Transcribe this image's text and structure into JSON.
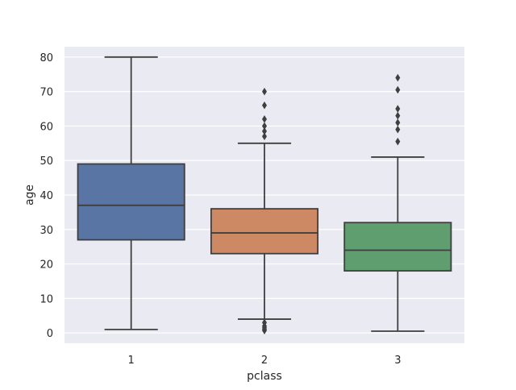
{
  "chart_data": {
    "type": "boxplot",
    "title": "",
    "xlabel": "pclass",
    "ylabel": "age",
    "categories": [
      "1",
      "2",
      "3"
    ],
    "ylim": [
      -3,
      83
    ],
    "yticks": [
      0,
      10,
      20,
      30,
      40,
      50,
      60,
      70,
      80
    ],
    "grid": true,
    "background": "#EAEAF2",
    "grid_color": "#FFFFFF",
    "line_color": "#3F3F3F",
    "boxes": [
      {
        "category": "1",
        "color": "#5975A4",
        "whisker_low": 1,
        "q1": 27,
        "median": 37,
        "q3": 49,
        "whisker_high": 80,
        "outliers": []
      },
      {
        "category": "2",
        "color": "#CC8963",
        "whisker_low": 4,
        "q1": 23,
        "median": 29,
        "q3": 36,
        "whisker_high": 55,
        "outliers": [
          0.7,
          1,
          1.5,
          2,
          3,
          57,
          58.5,
          60,
          62,
          66,
          70
        ]
      },
      {
        "category": "3",
        "color": "#5F9E6E",
        "whisker_low": 0.5,
        "q1": 18,
        "median": 24,
        "q3": 32,
        "whisker_high": 51,
        "outliers": [
          55.5,
          59,
          61,
          63,
          65,
          70.5,
          74
        ]
      }
    ]
  }
}
